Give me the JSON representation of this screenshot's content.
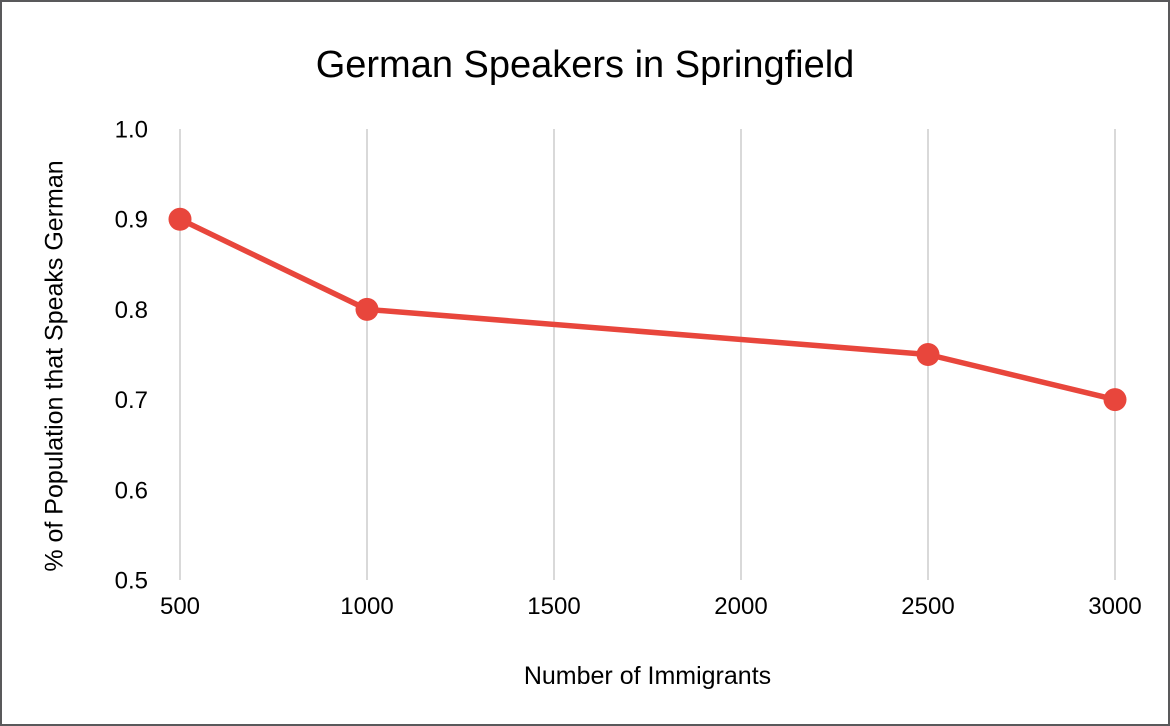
{
  "chart_data": {
    "type": "line",
    "title": "German Speakers in Springfield",
    "xlabel": "Number of Immigrants",
    "ylabel": "% of Population that Speaks German",
    "x": [
      500,
      1000,
      2500,
      3000
    ],
    "y": [
      0.9,
      0.8,
      0.75,
      0.7
    ],
    "x_ticks": [
      "500",
      "1000",
      "1500",
      "2000",
      "2500",
      "3000"
    ],
    "y_ticks": [
      "1.0",
      "0.9",
      "0.8",
      "0.7",
      "0.6",
      "0.5"
    ],
    "xlim": [
      500,
      3000
    ],
    "ylim": [
      0.5,
      1.0
    ],
    "grid": "vertical-only",
    "legend": "none",
    "marker_radius": 11.5,
    "line_width": 5.5,
    "colors": {
      "line": "#e8463c",
      "marker": "#e8463c",
      "grid": "#d9d9d9",
      "text": "#000000",
      "frame_border": "#59595b",
      "background": "#ffffff"
    }
  }
}
